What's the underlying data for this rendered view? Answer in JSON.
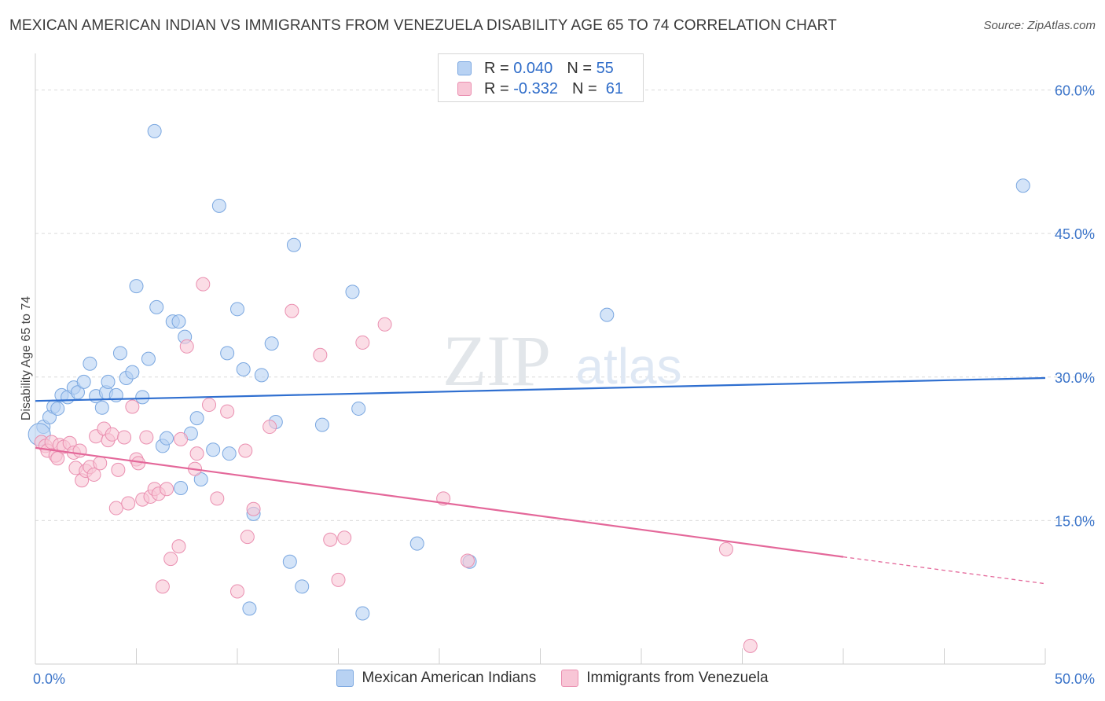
{
  "header": {
    "title": "MEXICAN AMERICAN INDIAN VS IMMIGRANTS FROM VENEZUELA DISABILITY AGE 65 TO 74 CORRELATION CHART",
    "source": "Source: ZipAtlas.com"
  },
  "legend_top": {
    "row1": {
      "r_label": "R =",
      "r_value": "0.040",
      "n_label": "N =",
      "n_value": "55"
    },
    "row2": {
      "r_label": "R =",
      "r_value": "-0.332",
      "n_label": "N =",
      "n_value": "61"
    }
  },
  "legend_bottom": {
    "series1": "Mexican American Indians",
    "series2": "Immigrants from Venezuela"
  },
  "watermark": {
    "zip": "ZIP",
    "atlas": "atlas"
  },
  "chart_data": {
    "type": "scatter",
    "title": "MEXICAN AMERICAN INDIAN VS IMMIGRANTS FROM VENEZUELA DISABILITY AGE 65 TO 74 CORRELATION CHART",
    "xlabel": "",
    "ylabel": "Disability Age 65 to 74",
    "xlim": [
      0,
      50
    ],
    "ylim": [
      0,
      63
    ],
    "x_tick_labels": [
      {
        "value": 0,
        "label": "0.0%"
      },
      {
        "value": 50,
        "label": "50.0%"
      }
    ],
    "y_tick_labels": [
      {
        "value": 15,
        "label": "15.0%"
      },
      {
        "value": 30,
        "label": "30.0%"
      },
      {
        "value": 45,
        "label": "45.0%"
      },
      {
        "value": 60,
        "label": "60.0%"
      }
    ],
    "colors": {
      "blue_fill": "#b8d2f3",
      "blue_stroke": "#7aa7e0",
      "blue_line": "#2f6fd0",
      "pink_fill": "#f8c6d6",
      "pink_stroke": "#ea8fb0",
      "pink_line": "#e4689a",
      "tick_label": "#3b74c9",
      "grid": "#dcdcdc"
    },
    "series": [
      {
        "name": "Mexican American Indians",
        "color": "blue",
        "r": 0.04,
        "n": 55,
        "trend": {
          "x0": 0,
          "y0": 27.5,
          "x1": 50,
          "y1": 29.9
        },
        "points": [
          [
            0.4,
            24.8
          ],
          [
            0.7,
            25.8
          ],
          [
            0.9,
            26.9
          ],
          [
            1.1,
            26.7
          ],
          [
            1.3,
            28.1
          ],
          [
            1.6,
            27.9
          ],
          [
            1.9,
            28.9
          ],
          [
            2.1,
            28.4
          ],
          [
            2.4,
            29.5
          ],
          [
            2.7,
            31.4
          ],
          [
            3.0,
            28.0
          ],
          [
            3.3,
            26.8
          ],
          [
            3.5,
            28.4
          ],
          [
            3.6,
            29.5
          ],
          [
            4.0,
            28.1
          ],
          [
            4.2,
            32.5
          ],
          [
            4.5,
            29.9
          ],
          [
            4.8,
            30.5
          ],
          [
            5.0,
            39.5
          ],
          [
            5.3,
            27.9
          ],
          [
            5.6,
            31.9
          ],
          [
            5.9,
            55.7
          ],
          [
            6.0,
            37.3
          ],
          [
            6.3,
            22.8
          ],
          [
            6.5,
            23.6
          ],
          [
            6.8,
            35.8
          ],
          [
            7.1,
            35.8
          ],
          [
            7.2,
            18.4
          ],
          [
            7.4,
            34.2
          ],
          [
            7.7,
            24.1
          ],
          [
            8.0,
            25.7
          ],
          [
            8.2,
            19.3
          ],
          [
            8.8,
            22.4
          ],
          [
            9.1,
            47.9
          ],
          [
            9.5,
            32.5
          ],
          [
            9.6,
            22.0
          ],
          [
            10.0,
            37.1
          ],
          [
            10.3,
            30.8
          ],
          [
            10.6,
            5.8
          ],
          [
            10.8,
            15.7
          ],
          [
            11.2,
            30.2
          ],
          [
            11.7,
            33.5
          ],
          [
            11.9,
            25.3
          ],
          [
            12.6,
            10.7
          ],
          [
            12.8,
            43.8
          ],
          [
            13.2,
            8.1
          ],
          [
            14.2,
            25.0
          ],
          [
            15.7,
            38.9
          ],
          [
            16.0,
            26.7
          ],
          [
            16.2,
            5.3
          ],
          [
            18.9,
            12.6
          ],
          [
            21.5,
            10.7
          ],
          [
            28.3,
            36.5
          ],
          [
            48.9,
            50.0
          ],
          [
            0.2,
            24.0
          ]
        ]
      },
      {
        "name": "Immigrants from Venezuela",
        "color": "pink",
        "r": -0.332,
        "n": 61,
        "trend": {
          "x0": 0,
          "y0": 22.6,
          "x1": 40,
          "y1": 11.2,
          "dash_to_x": 50,
          "dash_to_y": 8.4
        },
        "points": [
          [
            0.3,
            23.2
          ],
          [
            0.5,
            22.8
          ],
          [
            0.6,
            22.3
          ],
          [
            0.8,
            23.2
          ],
          [
            1.0,
            21.8
          ],
          [
            1.1,
            21.5
          ],
          [
            1.2,
            22.9
          ],
          [
            1.4,
            22.7
          ],
          [
            1.7,
            23.1
          ],
          [
            1.9,
            22.1
          ],
          [
            2.0,
            20.5
          ],
          [
            2.2,
            22.3
          ],
          [
            2.3,
            19.2
          ],
          [
            2.5,
            20.2
          ],
          [
            2.7,
            20.6
          ],
          [
            2.9,
            19.8
          ],
          [
            3.0,
            23.8
          ],
          [
            3.2,
            21.0
          ],
          [
            3.4,
            24.6
          ],
          [
            3.6,
            23.4
          ],
          [
            3.8,
            24.0
          ],
          [
            4.0,
            16.3
          ],
          [
            4.1,
            20.3
          ],
          [
            4.4,
            23.7
          ],
          [
            4.6,
            16.8
          ],
          [
            4.8,
            26.9
          ],
          [
            5.0,
            21.4
          ],
          [
            5.1,
            21.0
          ],
          [
            5.3,
            17.2
          ],
          [
            5.5,
            23.7
          ],
          [
            5.7,
            17.5
          ],
          [
            5.9,
            18.3
          ],
          [
            6.1,
            17.8
          ],
          [
            6.3,
            8.1
          ],
          [
            6.5,
            18.3
          ],
          [
            6.7,
            11.0
          ],
          [
            7.1,
            12.3
          ],
          [
            7.2,
            23.5
          ],
          [
            7.5,
            33.2
          ],
          [
            7.9,
            20.4
          ],
          [
            8.0,
            22.0
          ],
          [
            8.3,
            39.7
          ],
          [
            8.6,
            27.1
          ],
          [
            9.0,
            17.3
          ],
          [
            9.5,
            26.4
          ],
          [
            10.0,
            7.6
          ],
          [
            10.4,
            22.3
          ],
          [
            10.5,
            13.3
          ],
          [
            10.8,
            16.2
          ],
          [
            11.6,
            24.8
          ],
          [
            12.7,
            36.9
          ],
          [
            14.1,
            32.3
          ],
          [
            14.6,
            13.0
          ],
          [
            15.0,
            8.8
          ],
          [
            15.3,
            13.2
          ],
          [
            16.2,
            33.6
          ],
          [
            17.3,
            35.5
          ],
          [
            20.2,
            17.3
          ],
          [
            21.4,
            10.8
          ],
          [
            34.2,
            12.0
          ],
          [
            35.4,
            1.9
          ]
        ]
      }
    ]
  }
}
